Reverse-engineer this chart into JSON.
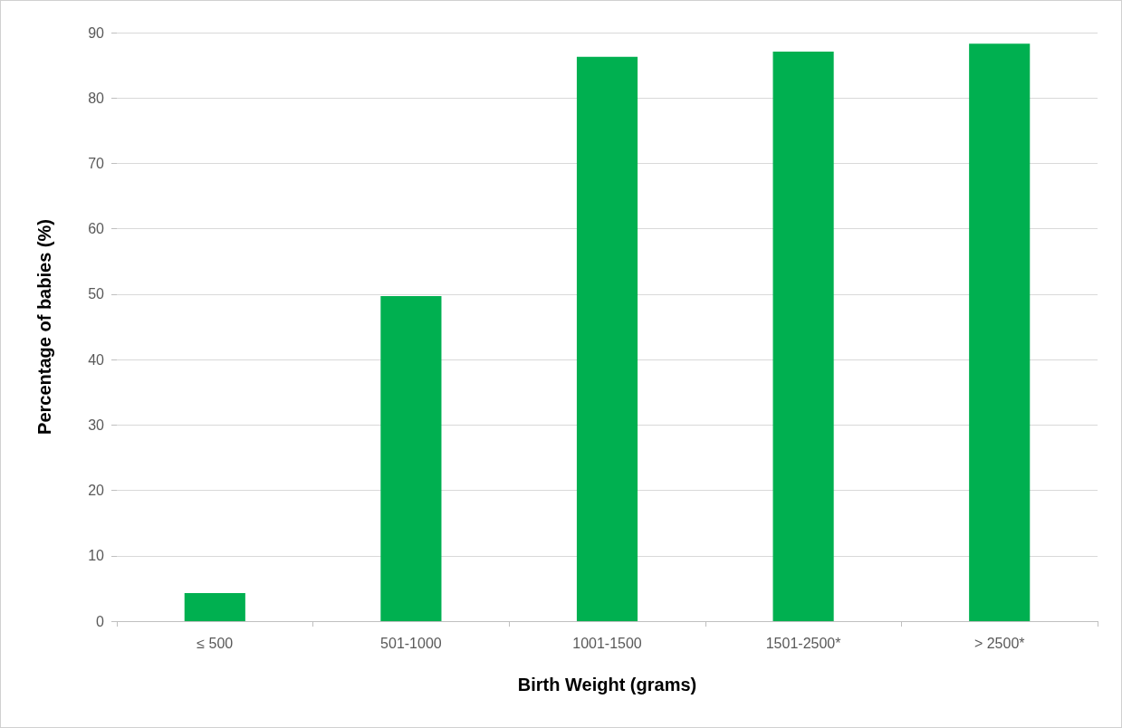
{
  "chart_data": {
    "type": "bar",
    "xlabel": "Birth Weight (grams)",
    "ylabel": "Percentage of babies (%)",
    "categories": [
      "≤ 500",
      "501-1000",
      "1001-1500",
      "1501-2500*",
      "> 2500*"
    ],
    "values": [
      4.3,
      49.7,
      86.3,
      87.1,
      88.3
    ],
    "color": "#00b050",
    "ylim": [
      0,
      90
    ],
    "yticks": [
      0,
      10,
      20,
      30,
      40,
      50,
      60,
      70,
      80,
      90
    ],
    "grid": "y"
  }
}
